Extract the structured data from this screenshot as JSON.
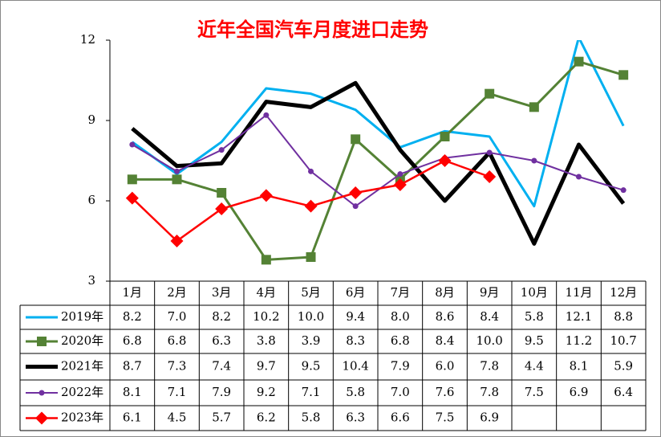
{
  "chart_data": {
    "type": "line",
    "title": "近年全国汽车月度进口走势",
    "categories": [
      "1月",
      "2月",
      "3月",
      "4月",
      "5月",
      "6月",
      "7月",
      "8月",
      "9月",
      "10月",
      "11月",
      "12月"
    ],
    "ylim": [
      3,
      12
    ],
    "yticks": [
      3,
      6,
      9,
      12
    ],
    "grid": false,
    "series": [
      {
        "name": "2019年",
        "color": "#00B0F0",
        "marker": "none",
        "values": [
          8.2,
          7.0,
          8.2,
          10.2,
          10.0,
          9.4,
          8.0,
          8.6,
          8.4,
          5.8,
          12.1,
          8.8
        ],
        "value_labels": [
          "8.2",
          "7.0",
          "8.2",
          "10.2",
          "10.0",
          "9.4",
          "8.0",
          "8.6",
          "8.4",
          "5.8",
          "12.1",
          "8.8"
        ]
      },
      {
        "name": "2020年",
        "color": "#548235",
        "marker": "square",
        "values": [
          6.8,
          6.8,
          6.3,
          3.8,
          3.9,
          8.3,
          6.8,
          8.4,
          10.0,
          9.5,
          11.2,
          10.7
        ],
        "value_labels": [
          "6.8",
          "6.8",
          "6.3",
          "3.8",
          "3.9",
          "8.3",
          "6.8",
          "8.4",
          "10.0",
          "9.5",
          "11.2",
          "10.7"
        ]
      },
      {
        "name": "2021年",
        "color": "#000000",
        "marker": "none",
        "values": [
          8.7,
          7.3,
          7.4,
          9.7,
          9.5,
          10.4,
          7.9,
          6.0,
          7.8,
          4.4,
          8.1,
          5.9
        ],
        "value_labels": [
          "8.7",
          "7.3",
          "7.4",
          "9.7",
          "9.5",
          "10.4",
          "7.9",
          "6.0",
          "7.8",
          "4.4",
          "8.1",
          "5.9"
        ]
      },
      {
        "name": "2022年",
        "color": "#7030A0",
        "marker": "circle",
        "values": [
          8.1,
          7.1,
          7.9,
          9.2,
          7.1,
          5.8,
          7.0,
          7.6,
          7.8,
          7.5,
          6.9,
          6.4
        ],
        "value_labels": [
          "8.1",
          "7.1",
          "7.9",
          "9.2",
          "7.1",
          "5.8",
          "7.0",
          "7.6",
          "7.8",
          "7.5",
          "6.9",
          "6.4"
        ]
      },
      {
        "name": "2023年",
        "color": "#FF0000",
        "marker": "diamond",
        "values": [
          6.1,
          4.5,
          5.7,
          6.2,
          5.8,
          6.3,
          6.6,
          7.5,
          6.9,
          null,
          null,
          null
        ],
        "value_labels": [
          "6.1",
          "4.5",
          "5.7",
          "6.2",
          "5.8",
          "6.3",
          "6.6",
          "7.5",
          "6.9",
          null,
          null,
          null
        ]
      }
    ]
  }
}
